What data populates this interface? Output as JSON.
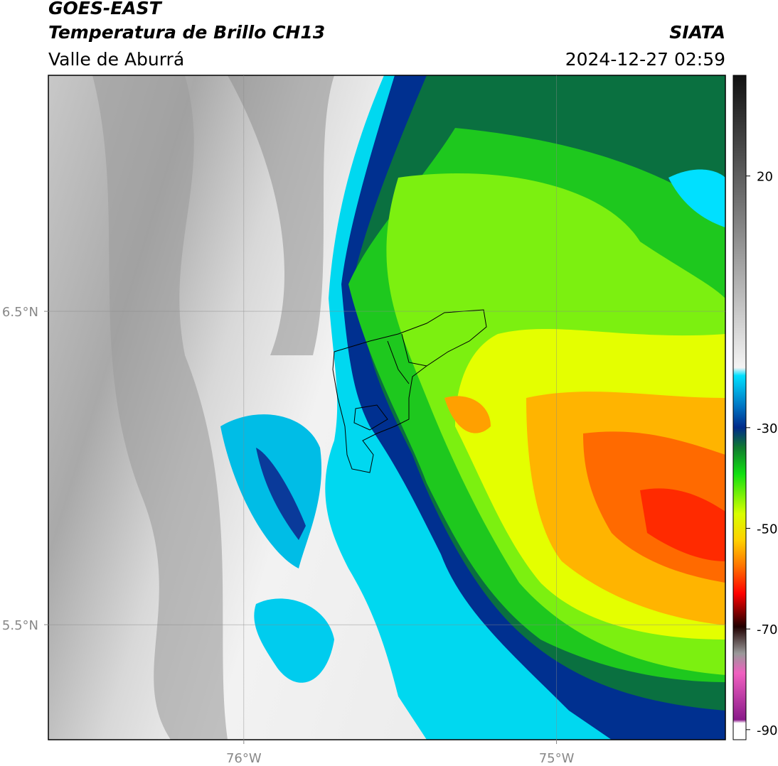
{
  "header": {
    "title": "GOES-EAST",
    "subtitle": "Temperatura de Brillo CH13",
    "region": "Valle de Aburrá",
    "source": "SIATA",
    "datetime": "2024-12-27 02:59"
  },
  "map": {
    "xlim": [
      -76.625,
      -74.46
    ],
    "ylim": [
      5.133,
      7.253
    ],
    "xticks": [
      {
        "value": -76,
        "label": "76°W"
      },
      {
        "value": -75,
        "label": "75°W"
      }
    ],
    "yticks": [
      {
        "value": 6.5,
        "label": "6.5°N"
      },
      {
        "value": 5.5,
        "label": "5.5°N"
      }
    ],
    "grid": true
  },
  "colorbar": {
    "lim": [
      -92,
      40
    ],
    "ticks": [
      20,
      -30,
      -50,
      -70,
      -90
    ]
  }
}
